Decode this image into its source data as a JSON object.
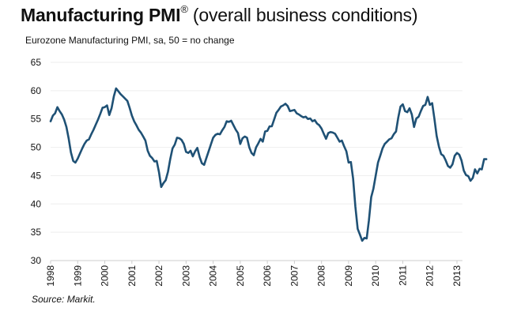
{
  "chart_data": {
    "type": "line",
    "title_bold": "Manufacturing PMI",
    "title_mark": "®",
    "title_rest": " (overall business conditions)",
    "subtitle": "Eurozone Manufacturing PMI, sa, 50 = no change",
    "source": "Source: Markit.",
    "xlabel": "",
    "ylabel": "",
    "ylim": [
      30,
      65
    ],
    "yticks": [
      30,
      35,
      40,
      45,
      50,
      55,
      60,
      65
    ],
    "xlim": [
      1998.0,
      2013.2
    ],
    "xticks": [
      "1998",
      "1999",
      "2000",
      "2001",
      "2002",
      "2003",
      "2004",
      "2005",
      "2006",
      "2007",
      "2008",
      "2009",
      "2010",
      "2011",
      "2012",
      "2013"
    ],
    "grid": true,
    "line_color": "#1f5175",
    "series": [
      {
        "name": "Eurozone Manufacturing PMI",
        "start": "1998-01",
        "frequency": "monthly",
        "values": [
          54.6,
          55.6,
          56.0,
          57.1,
          56.4,
          55.8,
          54.9,
          53.6,
          51.6,
          49.1,
          47.6,
          47.3,
          48.0,
          48.9,
          49.8,
          50.6,
          51.2,
          51.4,
          52.3,
          53.1,
          54.0,
          54.9,
          55.9,
          57.0,
          57.1,
          57.4,
          55.7,
          56.9,
          59.0,
          60.4,
          59.9,
          59.4,
          59.0,
          58.6,
          58.2,
          57.0,
          55.6,
          54.6,
          53.9,
          53.1,
          52.6,
          51.9,
          51.2,
          49.4,
          48.5,
          48.1,
          47.5,
          47.6,
          45.6,
          43.0,
          43.7,
          44.2,
          45.7,
          47.9,
          49.8,
          50.5,
          51.7,
          51.6,
          51.3,
          50.6,
          49.2,
          49.0,
          49.4,
          48.4,
          49.3,
          49.9,
          48.3,
          47.2,
          46.9,
          48.1,
          49.3,
          50.5,
          51.7,
          52.2,
          52.4,
          52.3,
          53.0,
          53.6,
          54.6,
          54.5,
          54.7,
          53.9,
          53.1,
          52.5,
          50.6,
          51.6,
          51.9,
          51.7,
          50.0,
          49.0,
          48.6,
          50.0,
          50.7,
          51.5,
          51.0,
          52.8,
          52.9,
          53.7,
          53.7,
          54.9,
          56.1,
          56.6,
          57.2,
          57.4,
          57.7,
          57.3,
          56.4,
          56.5,
          56.6,
          56.0,
          55.8,
          55.5,
          55.3,
          55.4,
          55.0,
          55.1,
          54.6,
          54.8,
          54.2,
          53.9,
          53.3,
          52.4,
          51.5,
          52.5,
          52.7,
          52.6,
          52.4,
          51.7,
          51.0,
          51.2,
          50.2,
          49.3,
          47.3,
          47.4,
          44.5,
          39.5,
          35.6,
          34.6,
          33.5,
          34.0,
          33.9,
          37.1,
          41.2,
          42.7,
          45.0,
          47.3,
          48.5,
          49.8,
          50.6,
          51.0,
          51.4,
          51.6,
          52.3,
          52.8,
          55.3,
          57.2,
          57.6,
          56.4,
          56.2,
          56.9,
          55.8,
          53.6,
          55.1,
          55.4,
          56.4,
          57.3,
          57.5,
          58.9,
          57.5,
          57.8,
          55.1,
          52.0,
          50.1,
          48.8,
          48.5,
          47.7,
          46.7,
          46.4,
          47.0,
          48.5,
          49.0,
          48.7,
          47.7,
          45.9,
          45.1,
          44.9,
          44.1,
          44.6,
          46.1,
          45.4,
          46.2,
          46.1,
          47.9,
          47.9
        ]
      }
    ]
  }
}
